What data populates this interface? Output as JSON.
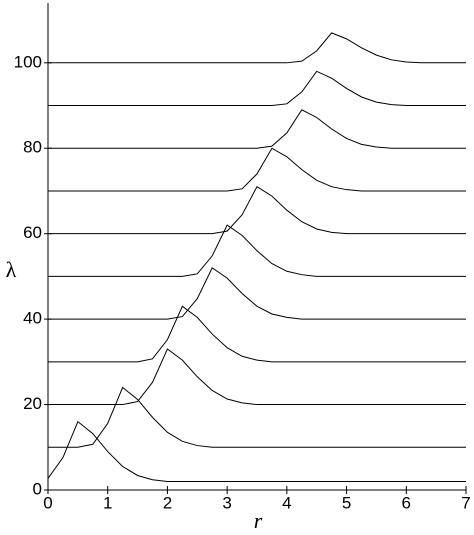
{
  "chart_data": {
    "type": "line",
    "xlabel": "r",
    "ylabel": "λ",
    "x": [
      0,
      0.25,
      0.5,
      0.75,
      1,
      1.25,
      1.5,
      1.75,
      2,
      2.25,
      2.5,
      2.75,
      3,
      3.25,
      3.5,
      3.75,
      4,
      4.25,
      4.5,
      4.75,
      5,
      5.25,
      5.5,
      5.75,
      6,
      6.25,
      6.5,
      6.75,
      7
    ],
    "series": [
      {
        "color": "#000000",
        "values": [
          2.7,
          7.6,
          16,
          13.2,
          9,
          5.5,
          3.4,
          2.4,
          2,
          2,
          2,
          2,
          2,
          2,
          2,
          2,
          2,
          2,
          2,
          2,
          2,
          2,
          2,
          2,
          2,
          2,
          2,
          2,
          2
        ]
      },
      {
        "color": "#000000",
        "values": [
          10,
          10,
          10,
          10.7,
          15.6,
          24,
          21.2,
          17,
          13.5,
          11.4,
          10.4,
          10,
          10,
          10,
          10,
          10,
          10,
          10,
          10,
          10,
          10,
          10,
          10,
          10,
          10,
          10,
          10,
          10,
          10
        ]
      },
      {
        "color": "#000000",
        "values": [
          20,
          20,
          20,
          20,
          20,
          20,
          20.7,
          25.2,
          33,
          30.4,
          26.5,
          23.3,
          21.3,
          20.4,
          20,
          20,
          20,
          20,
          20,
          20,
          20,
          20,
          20,
          20,
          20,
          20,
          20,
          20,
          20
        ]
      },
      {
        "color": "#000000",
        "values": [
          30,
          30,
          30,
          30,
          30,
          30,
          30,
          30.7,
          35.2,
          43,
          40.4,
          36.5,
          33.3,
          31.3,
          30.4,
          30,
          30,
          30,
          30,
          30,
          30,
          30,
          30,
          30,
          30,
          30,
          30,
          30,
          30
        ]
      },
      {
        "color": "#000000",
        "values": [
          40,
          40,
          40,
          40,
          40,
          40,
          40,
          40,
          40,
          40.6,
          44.8,
          52,
          49.6,
          46,
          43,
          41.2,
          40.4,
          40,
          40,
          40,
          40,
          40,
          40,
          40,
          40,
          40,
          40,
          40,
          40
        ]
      },
      {
        "color": "#000000",
        "values": [
          50,
          50,
          50,
          50,
          50,
          50,
          50,
          50,
          50,
          50,
          50.6,
          54.8,
          62,
          59.6,
          56,
          53,
          51.2,
          50.4,
          50,
          50,
          50,
          50,
          50,
          50,
          50,
          50,
          50,
          50,
          50
        ]
      },
      {
        "color": "#000000",
        "values": [
          60,
          60,
          60,
          60,
          60,
          60,
          60,
          60,
          60,
          60,
          60,
          60,
          60.6,
          64.4,
          71,
          68.8,
          65.5,
          62.8,
          61.1,
          60.3,
          60,
          60,
          60,
          60,
          60,
          60,
          60,
          60,
          60
        ]
      },
      {
        "color": "#000000",
        "values": [
          70,
          70,
          70,
          70,
          70,
          70,
          70,
          70,
          70,
          70,
          70,
          70,
          70,
          70.5,
          74,
          80,
          78,
          75,
          72.5,
          71,
          70.3,
          70,
          70,
          70,
          70,
          70,
          70,
          70,
          70
        ]
      },
      {
        "color": "#000000",
        "values": [
          80,
          80,
          80,
          80,
          80,
          80,
          80,
          80,
          80,
          80,
          80,
          80,
          80,
          80,
          80,
          80.5,
          83.6,
          89,
          87.2,
          84.5,
          82.3,
          80.9,
          80.3,
          80,
          80,
          80,
          80,
          80,
          80
        ]
      },
      {
        "color": "#000000",
        "values": [
          90,
          90,
          90,
          90,
          90,
          90,
          90,
          90,
          90,
          90,
          90,
          90,
          90,
          90,
          90,
          90,
          90.4,
          93.2,
          98,
          96.4,
          94,
          92,
          90.8,
          90.2,
          90,
          90,
          90,
          90,
          90
        ]
      },
      {
        "color": "#000000",
        "values": [
          100,
          100,
          100,
          100,
          100,
          100,
          100,
          100,
          100,
          100,
          100,
          100,
          100,
          100,
          100,
          100,
          100,
          100.4,
          102.8,
          107,
          105.6,
          103.5,
          101.8,
          100.7,
          100.2,
          100,
          100,
          100,
          100
        ]
      }
    ],
    "xlim": [
      0,
      7
    ],
    "xticks": [
      0,
      1,
      2,
      3,
      4,
      5,
      6,
      7
    ],
    "ylim": [
      0,
      114
    ],
    "yticks": [
      0,
      20,
      40,
      60,
      80,
      100
    ]
  }
}
